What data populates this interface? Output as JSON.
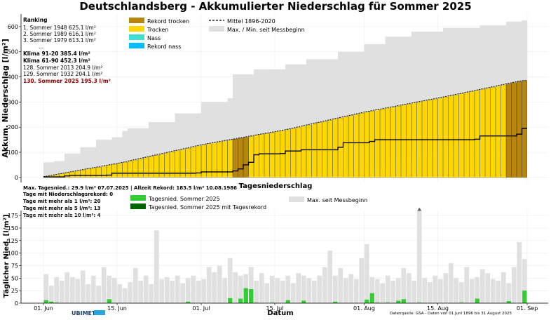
{
  "title": "Deutschlandsberg - Akkumulierter Niederschlag für Sommer 2025",
  "colors": {
    "rekord_trocken": "#b8860b",
    "trocken": "#ffd700",
    "nass": "#40e0d0",
    "rekord_nass": "#00bfff",
    "range": "#e0e0e0",
    "daily": "#32cd32",
    "daily_record": "#006400",
    "curve": "#000000",
    "ranking_current": "#8b0000"
  },
  "ranking": {
    "title": "Ranking",
    "lines": [
      "1.  Sommer 1948  625.1 l/m²",
      "2.  Sommer 1989  616.1 l/m²",
      "3.  Sommer 1979  613.1 l/m²",
      "...",
      "Klima 91-20 385.4 l/m²",
      "Klima 61-90 452.3 l/m²",
      "128.  Sommer 2013  204.9 l/m²",
      "129.  Sommer 1932  204.1 l/m²",
      "130.  Sommer 2025  195.3 l/m²"
    ]
  },
  "legend_top": {
    "rekord_trocken": "Rekord trocken",
    "trocken": "Trocken",
    "nass": "Nass",
    "rekord_nass": "Rekord nass",
    "mittel": "Mittel 1896-2020",
    "maxmin": "Max. / Min. seit Messbeginn"
  },
  "stats": {
    "line1": "Max. Tagesnied.: 29.9 l/m² 07.07.2025 | Allzeit Rekord: 183.5 l/m² 10.08.1986",
    "line2": "Tage mit Niederschlagsrekord: 0",
    "line3": "Tage mit mehr als 1 l/m²: 20",
    "line4": "Tage mit mehr als 5 l/m²: 13",
    "line5": "Tage mit mehr als 10 l/m²: 4"
  },
  "legend_bottom": {
    "daily": "Tagesnied. Sommer 2025",
    "daily_record": "Tagesnied. Sommer 2025 mit Tagesrekord",
    "max": "Max. seit Messbeginn"
  },
  "footer": {
    "brand": "UBIMET",
    "source": "Datenquelle: GSA - Daten von 01 Juni 1896 bis 31 August 2025"
  },
  "chart_data": [
    {
      "type": "bar",
      "title": "Deutschlandsberg - Akkumulierter Niederschlag für Sommer 2025",
      "xlabel": "",
      "ylabel": "Akkum. Niederschlag [l/m²]",
      "ylim": [
        -20,
        650
      ],
      "yticks": [
        0,
        100,
        200,
        300,
        400,
        500,
        600
      ],
      "x_tick_labels": [
        "01. Jun",
        "15. Jun",
        "01. Jul",
        "15. Jul",
        "01. Aug",
        "15. Aug",
        "01. Sep"
      ],
      "x_tick_days": [
        0,
        14,
        30,
        44,
        61,
        75,
        92
      ],
      "grid": true,
      "n_days": 92,
      "cum_2025_knots": [
        [
          0,
          2
        ],
        [
          4,
          6
        ],
        [
          5,
          8
        ],
        [
          12,
          9
        ],
        [
          13,
          17
        ],
        [
          29,
          18
        ],
        [
          30,
          22
        ],
        [
          36,
          26
        ],
        [
          37,
          34
        ],
        [
          38,
          50
        ],
        [
          39,
          60
        ],
        [
          40,
          90
        ],
        [
          41,
          94
        ],
        [
          45,
          95
        ],
        [
          46,
          105
        ],
        [
          49,
          110
        ],
        [
          56,
          120
        ],
        [
          57,
          138
        ],
        [
          62,
          143
        ],
        [
          63,
          150
        ],
        [
          82,
          152
        ],
        [
          83,
          165
        ],
        [
          90,
          172
        ],
        [
          91,
          195.3
        ]
      ],
      "mean_1896_2020_knots": [
        [
          0,
          3
        ],
        [
          15,
          60
        ],
        [
          30,
          130
        ],
        [
          46,
          190
        ],
        [
          61,
          260
        ],
        [
          76,
          320
        ],
        [
          91,
          385.4
        ]
      ],
      "max_knots": [
        [
          0,
          60
        ],
        [
          2,
          65
        ],
        [
          4,
          95
        ],
        [
          7,
          120
        ],
        [
          10,
          150
        ],
        [
          13,
          160
        ],
        [
          15,
          185
        ],
        [
          16,
          195
        ],
        [
          20,
          220
        ],
        [
          25,
          255
        ],
        [
          30,
          300
        ],
        [
          35,
          315
        ],
        [
          36,
          410
        ],
        [
          40,
          430
        ],
        [
          46,
          450
        ],
        [
          50,
          470
        ],
        [
          56,
          500
        ],
        [
          61,
          530
        ],
        [
          65,
          560
        ],
        [
          70,
          580
        ],
        [
          76,
          595
        ],
        [
          83,
          605
        ],
        [
          88,
          620
        ],
        [
          91,
          625.1
        ]
      ],
      "min_knots": [
        [
          0,
          0
        ],
        [
          8,
          2
        ],
        [
          14,
          5
        ],
        [
          24,
          8
        ],
        [
          30,
          12
        ],
        [
          40,
          14
        ],
        [
          50,
          18
        ],
        [
          56,
          24
        ],
        [
          60,
          40
        ],
        [
          65,
          70
        ],
        [
          70,
          100
        ],
        [
          75,
          130
        ],
        [
          80,
          150
        ],
        [
          85,
          170
        ],
        [
          88,
          185
        ],
        [
          91,
          204.1
        ]
      ]
    },
    {
      "type": "bar",
      "title": "Tagesniederschlag",
      "xlabel": "Datum",
      "ylabel": "Täglicher Nied. [l/m²]",
      "ylim": [
        0,
        185
      ],
      "yticks": [
        0,
        25,
        50,
        75,
        100,
        125,
        150,
        175
      ],
      "x_tick_labels": [
        "01. Jun",
        "15. Jun",
        "01. Jul",
        "15. Jul",
        "01. Aug",
        "15. Aug",
        "01. Sep"
      ],
      "x_tick_days": [
        0,
        14,
        30,
        44,
        61,
        75,
        92
      ],
      "grid": true,
      "daily_2025": [
        6,
        3,
        1,
        0,
        0,
        0,
        0,
        0,
        0,
        0,
        0,
        0,
        8,
        0,
        0,
        0,
        0,
        0,
        0,
        0,
        0,
        0,
        0,
        0,
        0,
        0,
        0,
        3,
        0,
        0,
        0,
        0,
        0,
        0,
        0,
        10,
        0,
        9,
        30,
        28,
        1,
        0,
        0,
        1,
        0,
        0,
        6,
        0,
        0,
        5,
        0,
        0,
        0,
        0,
        0,
        3,
        0,
        0,
        0,
        0,
        0,
        7,
        20,
        1,
        0,
        1,
        0,
        5,
        8,
        0,
        0,
        1,
        0,
        0,
        0,
        0,
        0,
        0,
        0,
        1,
        0,
        0,
        9,
        0,
        0,
        0,
        0,
        0,
        4,
        0,
        0,
        25
      ],
      "daily_max": [
        58,
        35,
        52,
        45,
        62,
        52,
        48,
        65,
        38,
        55,
        35,
        72,
        55,
        50,
        38,
        30,
        42,
        70,
        45,
        55,
        38,
        145,
        48,
        52,
        45,
        55,
        40,
        50,
        55,
        45,
        48,
        72,
        62,
        75,
        50,
        90,
        62,
        55,
        58,
        72,
        45,
        60,
        40,
        55,
        50,
        45,
        55,
        40,
        60,
        55,
        50,
        45,
        55,
        72,
        105,
        55,
        70,
        50,
        58,
        48,
        90,
        118,
        52,
        48,
        40,
        55,
        45,
        50,
        70,
        60,
        45,
        183.5,
        50,
        42,
        55,
        48,
        60,
        80,
        50,
        42,
        72,
        48,
        52,
        68,
        60,
        48,
        45,
        62,
        40,
        72,
        122,
        88
      ]
    }
  ]
}
